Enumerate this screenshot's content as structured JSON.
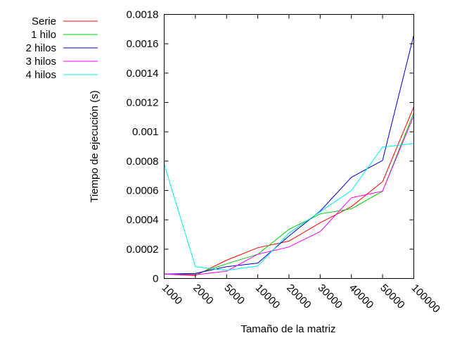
{
  "chart_data": {
    "type": "line",
    "title": "",
    "xlabel": "Tamaño de la matriz",
    "ylabel": "Tiempo de ejecución (s)",
    "categories": [
      "1000",
      "2000",
      "5000",
      "10000",
      "20000",
      "30000",
      "40000",
      "50000",
      "100000"
    ],
    "ylim": [
      0,
      0.0018
    ],
    "yticks": [
      "0",
      "0.0002",
      "0.0004",
      "0.0006",
      "0.0008",
      "0.001",
      "0.0012",
      "0.0014",
      "0.0016",
      "0.0018"
    ],
    "grid": false,
    "legend_position": "top-left outside",
    "series": [
      {
        "name": "Serie",
        "color": "#ff0000",
        "values": [
          3e-05,
          2e-05,
          0.000125,
          0.00021,
          0.000255,
          0.00038,
          0.00049,
          0.00066,
          0.00117
        ]
      },
      {
        "name": "1 hilo",
        "color": "#00cc00",
        "values": [
          3e-05,
          3e-05,
          0.0001,
          0.000165,
          0.000335,
          0.00044,
          0.000475,
          0.000595,
          0.00113
        ]
      },
      {
        "name": "2 hilos",
        "color": "#0000cc",
        "values": [
          3e-05,
          3.5e-05,
          8e-05,
          0.000105,
          0.00029,
          0.00046,
          0.00069,
          0.000805,
          0.00166
        ]
      },
      {
        "name": "3 hilos",
        "color": "#ff00ff",
        "values": [
          3e-05,
          2.5e-05,
          5e-05,
          0.000165,
          0.000215,
          0.00032,
          0.00055,
          0.000595,
          0.00111
        ]
      },
      {
        "name": "4 hilos",
        "color": "#00eeee",
        "values": [
          0.00078,
          8e-05,
          5.5e-05,
          8.5e-05,
          0.00031,
          0.000455,
          0.0006,
          0.000895,
          0.00092
        ]
      }
    ]
  }
}
